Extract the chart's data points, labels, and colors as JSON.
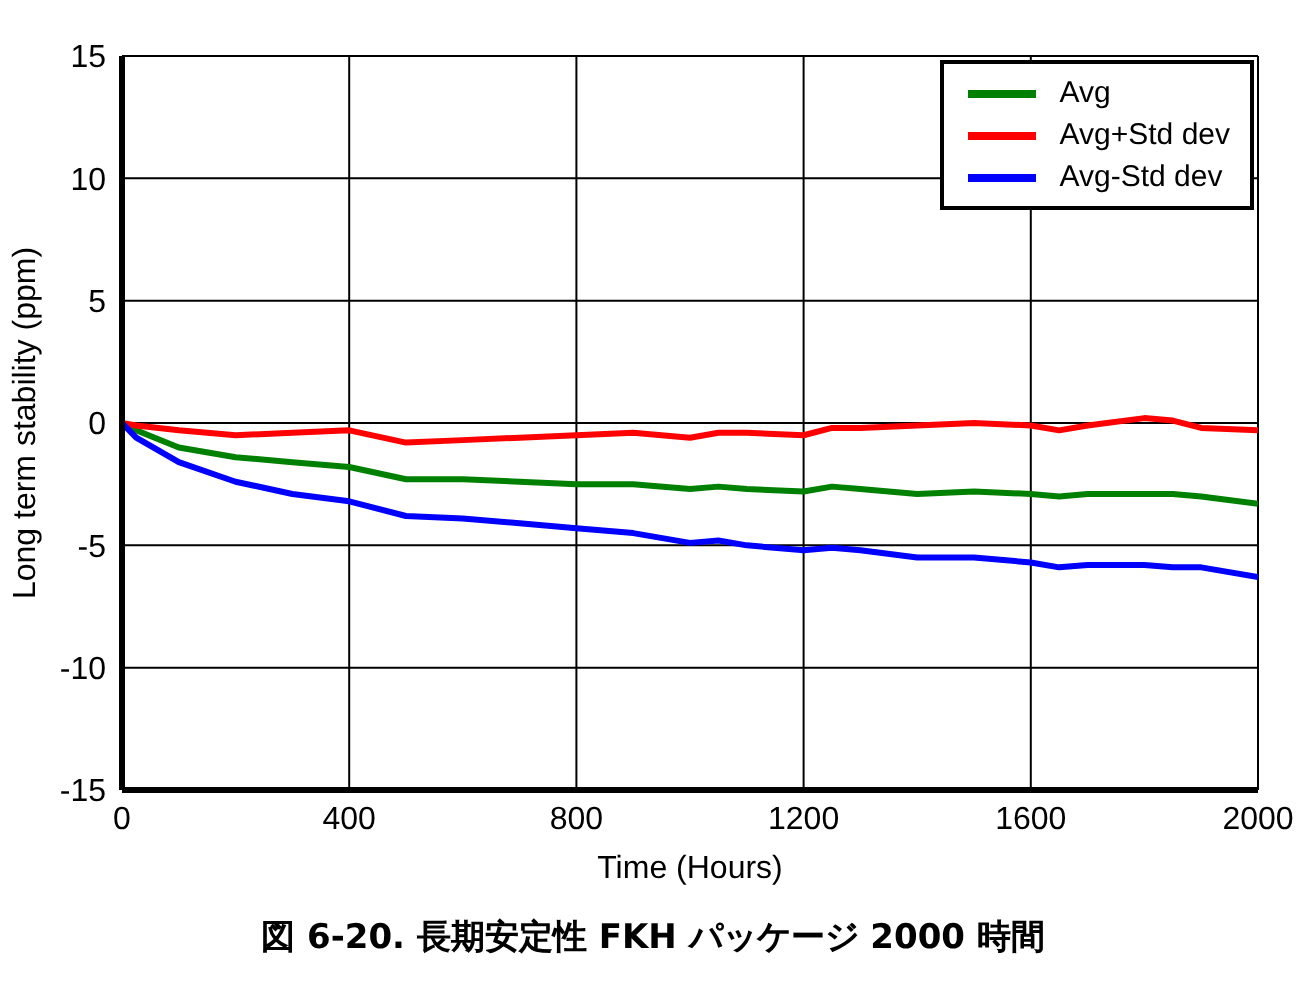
{
  "chart_data": {
    "type": "line",
    "title": "図 6-20. 長期安定性 FKH パッケージ 2000 時間",
    "xlabel": "Time (Hours)",
    "ylabel": "Long term stability (ppm)",
    "x": [
      0,
      25,
      100,
      200,
      300,
      400,
      500,
      600,
      700,
      800,
      900,
      1000,
      1050,
      1100,
      1200,
      1250,
      1300,
      1400,
      1500,
      1600,
      1650,
      1700,
      1800,
      1850,
      1900,
      2000
    ],
    "series": [
      {
        "name": "Avg",
        "color": "#008000",
        "values": [
          0,
          -0.3,
          -1,
          -1.4,
          -1.6,
          -1.8,
          -2.3,
          -2.3,
          -2.4,
          -2.5,
          -2.5,
          -2.7,
          -2.6,
          -2.7,
          -2.8,
          -2.6,
          -2.7,
          -2.9,
          -2.8,
          -2.9,
          -3.0,
          -2.9,
          -2.9,
          -2.9,
          -3.0,
          -3.3
        ]
      },
      {
        "name": "Avg+Std dev",
        "color": "#ff0000",
        "values": [
          0,
          -0.1,
          -0.3,
          -0.5,
          -0.4,
          -0.3,
          -0.8,
          -0.7,
          -0.6,
          -0.5,
          -0.4,
          -0.6,
          -0.4,
          -0.4,
          -0.5,
          -0.2,
          -0.2,
          -0.1,
          0,
          -0.1,
          -0.3,
          -0.1,
          0.2,
          0.1,
          -0.2,
          -0.3
        ]
      },
      {
        "name": "Avg-Std dev",
        "color": "#0000ff",
        "values": [
          0,
          -0.6,
          -1.6,
          -2.4,
          -2.9,
          -3.2,
          -3.8,
          -3.9,
          -4.1,
          -4.3,
          -4.5,
          -4.9,
          -4.8,
          -5.0,
          -5.2,
          -5.1,
          -5.2,
          -5.5,
          -5.5,
          -5.7,
          -5.9,
          -5.8,
          -5.8,
          -5.9,
          -5.9,
          -6.3
        ]
      }
    ],
    "xlim": [
      0,
      2000
    ],
    "xticks": [
      0,
      400,
      800,
      1200,
      1600,
      2000
    ],
    "ylim": [
      -15,
      15
    ],
    "yticks": [
      -15,
      -10,
      -5,
      0,
      5,
      10,
      15
    ],
    "grid": true,
    "legend": "top right",
    "line_style": "solid",
    "marker": "none"
  }
}
